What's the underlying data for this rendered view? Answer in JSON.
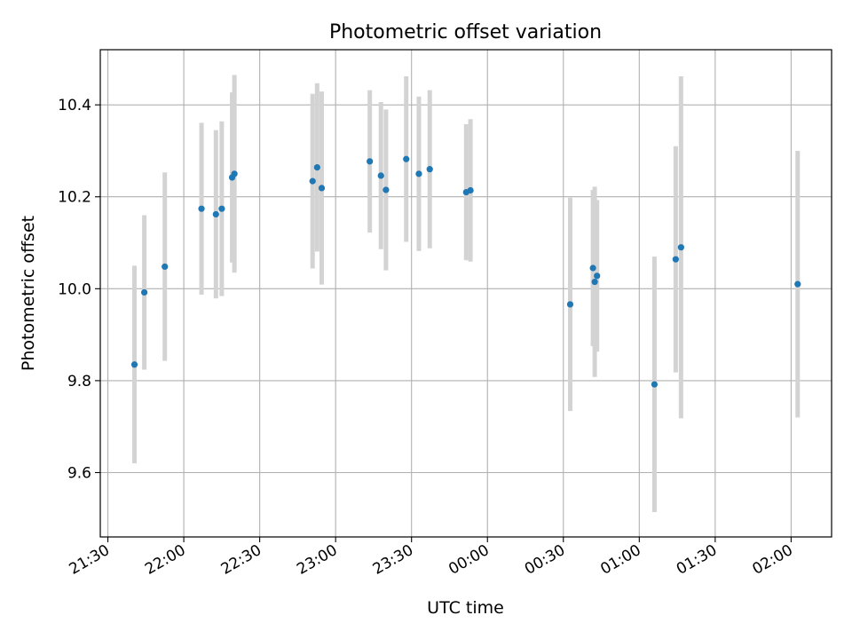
{
  "chart_data": {
    "type": "scatter",
    "title": "Photometric offset variation",
    "xlabel": "UTC time",
    "ylabel": "Photometric offset",
    "x_unit": "minutes after 21:30 UTC",
    "xlim": [
      -3,
      286
    ],
    "ylim": [
      9.46,
      10.52
    ],
    "grid": true,
    "x_ticks": [
      {
        "value": 0,
        "label": "21:30"
      },
      {
        "value": 30,
        "label": "22:00"
      },
      {
        "value": 60,
        "label": "22:30"
      },
      {
        "value": 90,
        "label": "23:00"
      },
      {
        "value": 120,
        "label": "23:30"
      },
      {
        "value": 150,
        "label": "00:00"
      },
      {
        "value": 180,
        "label": "00:30"
      },
      {
        "value": 210,
        "label": "01:00"
      },
      {
        "value": 240,
        "label": "01:30"
      },
      {
        "value": 270,
        "label": "02:00"
      }
    ],
    "y_ticks": [
      {
        "value": 9.6,
        "label": "9.6"
      },
      {
        "value": 9.8,
        "label": "9.8"
      },
      {
        "value": 10.0,
        "label": "10.0"
      },
      {
        "value": 10.2,
        "label": "10.2"
      },
      {
        "value": 10.4,
        "label": "10.4"
      }
    ],
    "series": [
      {
        "marker_color": "#1f77b4",
        "errorbar_color": "#d3d3d3",
        "points": [
          {
            "x": 10.5,
            "y": 9.835,
            "err": 0.215
          },
          {
            "x": 14.4,
            "y": 9.992,
            "err": 0.168
          },
          {
            "x": 22.5,
            "y": 10.048,
            "err": 0.205
          },
          {
            "x": 37.0,
            "y": 10.174,
            "err": 0.187
          },
          {
            "x": 42.7,
            "y": 10.162,
            "err": 0.183
          },
          {
            "x": 45.0,
            "y": 10.174,
            "err": 0.19
          },
          {
            "x": 49.1,
            "y": 10.242,
            "err": 0.185
          },
          {
            "x": 50.0,
            "y": 10.25,
            "err": 0.215
          },
          {
            "x": 80.9,
            "y": 10.234,
            "err": 0.19
          },
          {
            "x": 82.7,
            "y": 10.264,
            "err": 0.183
          },
          {
            "x": 84.5,
            "y": 10.219,
            "err": 0.21
          },
          {
            "x": 103.5,
            "y": 10.277,
            "err": 0.155
          },
          {
            "x": 107.9,
            "y": 10.246,
            "err": 0.16
          },
          {
            "x": 109.9,
            "y": 10.215,
            "err": 0.175
          },
          {
            "x": 117.9,
            "y": 10.282,
            "err": 0.18
          },
          {
            "x": 122.9,
            "y": 10.25,
            "err": 0.168
          },
          {
            "x": 127.2,
            "y": 10.26,
            "err": 0.172
          },
          {
            "x": 141.6,
            "y": 10.21,
            "err": 0.148
          },
          {
            "x": 143.3,
            "y": 10.214,
            "err": 0.155
          },
          {
            "x": 182.7,
            "y": 9.966,
            "err": 0.232
          },
          {
            "x": 191.7,
            "y": 10.045,
            "err": 0.17
          },
          {
            "x": 192.4,
            "y": 10.015,
            "err": 0.207
          },
          {
            "x": 193.3,
            "y": 10.028,
            "err": 0.165
          },
          {
            "x": 216.0,
            "y": 9.792,
            "err": 0.278
          },
          {
            "x": 224.4,
            "y": 10.064,
            "err": 0.246
          },
          {
            "x": 226.5,
            "y": 10.09,
            "err": 0.372
          },
          {
            "x": 272.6,
            "y": 10.01,
            "err": 0.29
          }
        ]
      }
    ]
  }
}
